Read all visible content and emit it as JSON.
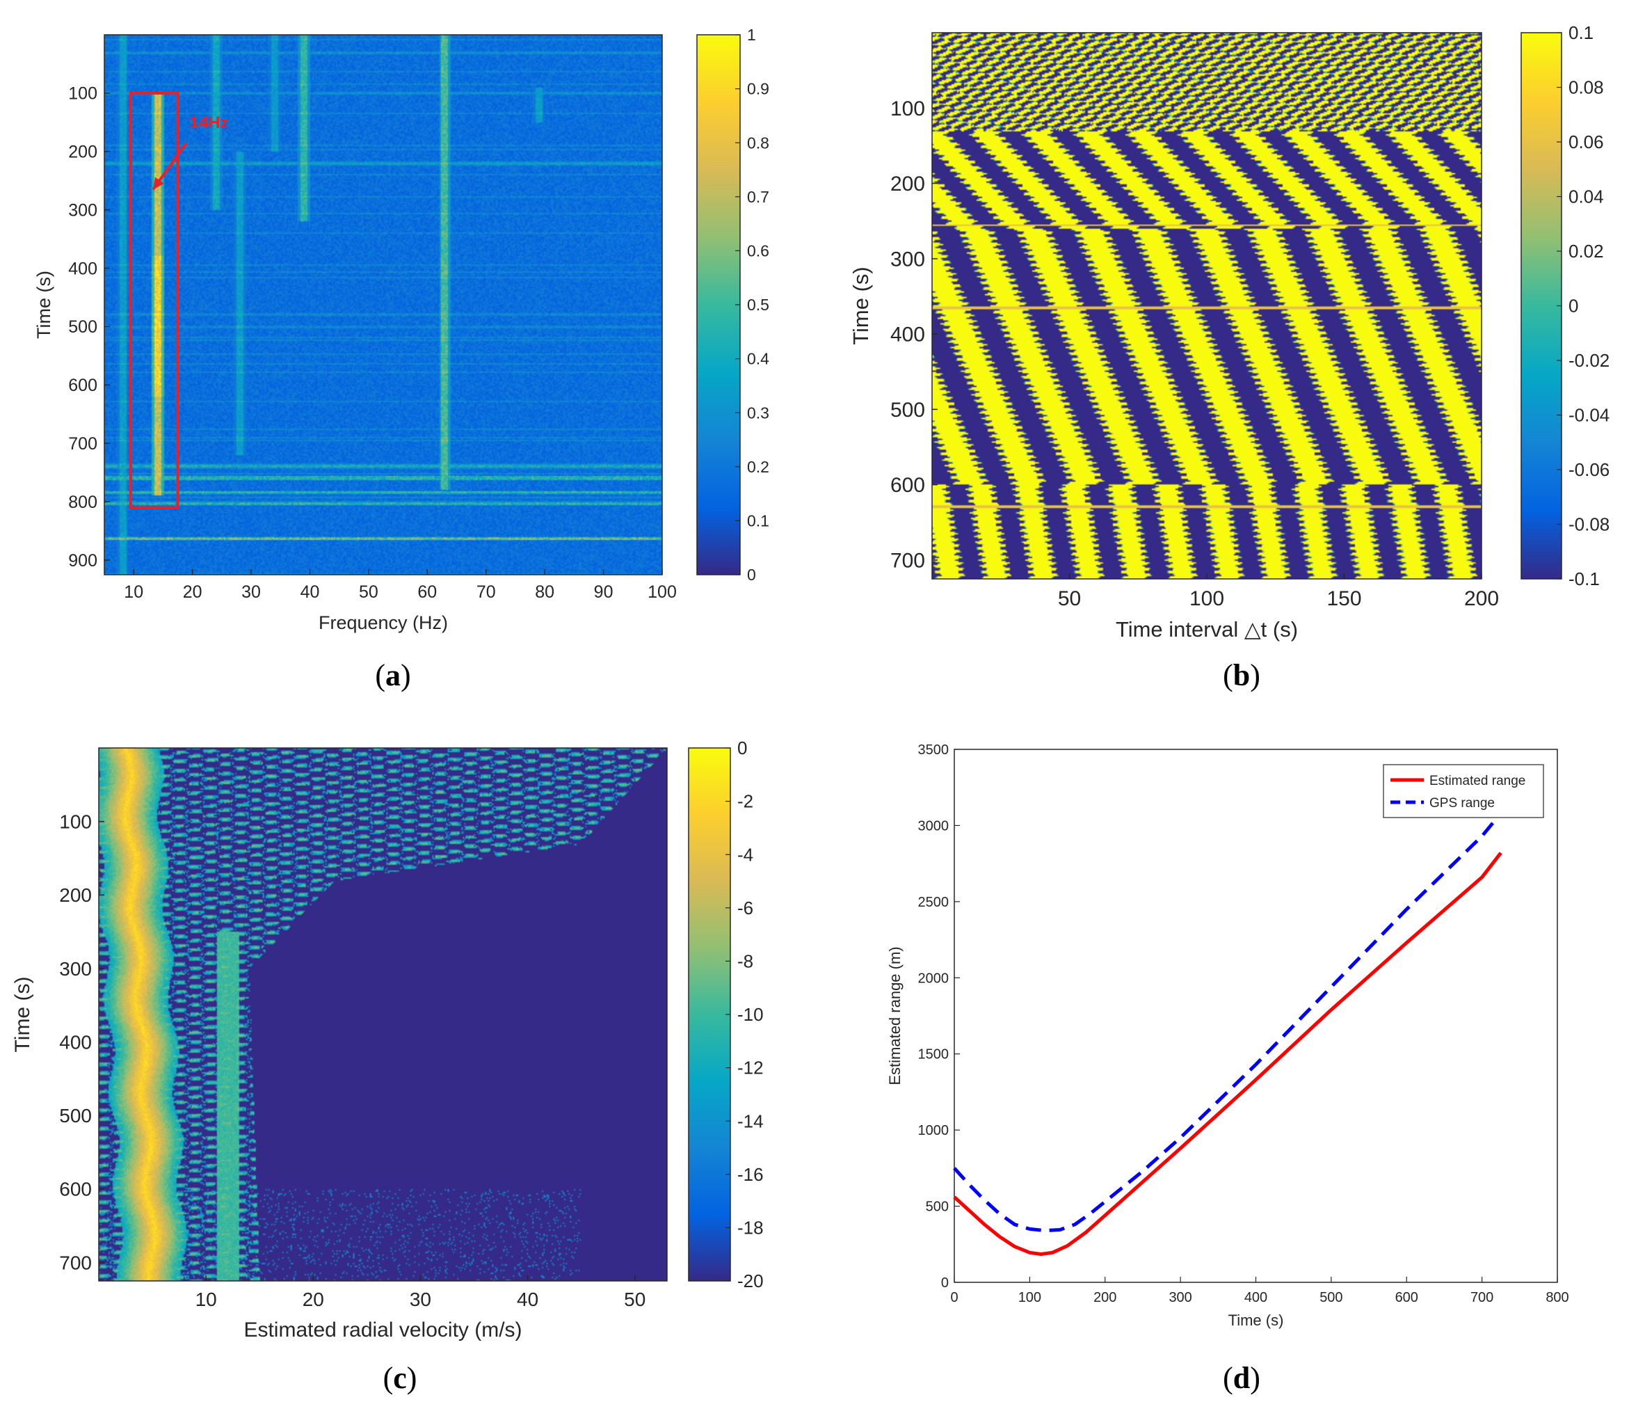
{
  "colors": {
    "parula": [
      "#352a87",
      "#0363e1",
      "#1485d4",
      "#06a7c6",
      "#38b99e",
      "#92bf73",
      "#d9ba56",
      "#fcce2e",
      "#f9fb0e"
    ],
    "range_est": "#ff0000",
    "range_gps": "#0000ff",
    "annotation": "#e8202a"
  },
  "chart_data": [
    {
      "id": "a",
      "type": "heatmap",
      "caption_letter": "a",
      "caption_open": "(",
      "caption_close": ")",
      "xlabel": "Frequency (Hz)",
      "ylabel": "Time (s)",
      "xlim": [
        5,
        100
      ],
      "ylim": [
        925,
        0
      ],
      "xticks": [
        10,
        20,
        30,
        40,
        50,
        60,
        70,
        80,
        90,
        100
      ],
      "yticks": [
        100,
        200,
        300,
        400,
        500,
        600,
        700,
        800,
        900
      ],
      "colorbar": {
        "range": [
          0,
          1
        ],
        "ticks": [
          0,
          0.1,
          0.2,
          0.3,
          0.4,
          0.5,
          0.6,
          0.7,
          0.8,
          0.9,
          1
        ],
        "labels": [
          "0",
          "0.1",
          "0.2",
          "0.3",
          "0.4",
          "0.5",
          "0.6",
          "0.7",
          "0.8",
          "0.9",
          "1"
        ]
      },
      "background_level": 0.17,
      "vertical_lines": [
        {
          "x": 8,
          "t": [
            0,
            925
          ],
          "level": 0.4
        },
        {
          "x": 14,
          "t": [
            100,
            790
          ],
          "level": 0.85
        },
        {
          "x": 14,
          "t": [
            380,
            620
          ],
          "level": 1.0
        },
        {
          "x": 24,
          "t": [
            0,
            300
          ],
          "level": 0.45
        },
        {
          "x": 28,
          "t": [
            200,
            720
          ],
          "level": 0.4
        },
        {
          "x": 34,
          "t": [
            0,
            200
          ],
          "level": 0.38
        },
        {
          "x": 39,
          "t": [
            0,
            320
          ],
          "level": 0.55
        },
        {
          "x": 63,
          "t": [
            0,
            780
          ],
          "level": 0.6
        },
        {
          "x": 79,
          "t": [
            90,
            150
          ],
          "level": 0.4
        }
      ],
      "horizontal_lines": [
        {
          "t": 30,
          "level": 0.35
        },
        {
          "t": 100,
          "level": 0.35
        },
        {
          "t": 220,
          "level": 0.35
        },
        {
          "t": 740,
          "level": 0.5
        },
        {
          "t": 760,
          "level": 0.55
        },
        {
          "t": 785,
          "level": 0.5
        },
        {
          "t": 805,
          "level": 0.55
        },
        {
          "t": 865,
          "level": 0.65
        }
      ],
      "annotation": {
        "text": "14Hz",
        "box": {
          "x": [
            9.5,
            17.5
          ],
          "t": [
            100,
            810
          ]
        },
        "text_at": {
          "x": 19.5,
          "t": 160
        },
        "arrow_from": {
          "x": 19,
          "t": 185
        },
        "arrow_to": {
          "x": 13.3,
          "t": 265
        }
      }
    },
    {
      "id": "b",
      "type": "heatmap",
      "caption_letter": "b",
      "caption_open": "(",
      "caption_close": ")",
      "xlabel": "Time interval △t (s)",
      "ylabel": "Time (s)",
      "xlim": [
        0,
        200
      ],
      "ylim": [
        725,
        0
      ],
      "xticks": [
        50,
        100,
        150,
        200
      ],
      "yticks": [
        100,
        200,
        300,
        400,
        500,
        600,
        700
      ],
      "colorbar": {
        "range": [
          -0.1,
          0.1
        ],
        "ticks": [
          -0.1,
          -0.08,
          -0.06,
          -0.04,
          -0.02,
          0,
          0.02,
          0.04,
          0.06,
          0.08,
          0.1
        ],
        "labels": [
          "-0.1",
          "-0.08",
          "-0.06",
          "-0.04",
          "-0.02",
          "0",
          "0.02",
          "0.04",
          "0.06",
          "0.08",
          "0.1"
        ]
      },
      "stripe_period": [
        40,
        26
      ],
      "bright_lines": [
        {
          "t": 255,
          "level": 0.1
        },
        {
          "t": 365,
          "level": 0.1
        },
        {
          "t": 630,
          "level": 0.08
        }
      ]
    },
    {
      "id": "c",
      "type": "heatmap",
      "caption_letter": "c",
      "caption_open": "(",
      "caption_close": ")",
      "xlabel": "Estimated radial velocity (m/s)",
      "ylabel": "Time (s)",
      "xlim": [
        0,
        53
      ],
      "ylim": [
        725,
        0
      ],
      "xticks": [
        10,
        20,
        30,
        40,
        50
      ],
      "yticks": [
        100,
        200,
        300,
        400,
        500,
        600,
        700
      ],
      "colorbar": {
        "range": [
          -20,
          0
        ],
        "ticks": [
          -20,
          -18,
          -16,
          -14,
          -12,
          -10,
          -8,
          -6,
          -4,
          -2,
          0
        ],
        "labels": [
          "-20",
          "-18",
          "-16",
          "-14",
          "-12",
          "-10",
          "-8",
          "-6",
          "-4",
          "-2",
          "0"
        ]
      },
      "ridge_velocity": [
        {
          "t": 0,
          "v": 2.5
        },
        {
          "t": 200,
          "v": 3.2
        },
        {
          "t": 450,
          "v": 4.2
        },
        {
          "t": 725,
          "v": 5.0
        }
      ],
      "ridge_level": -1,
      "secondary_ridge": {
        "v": 12,
        "t": [
          250,
          725
        ],
        "level": -11
      },
      "noise_edge": [
        {
          "t": 0,
          "v": 53
        },
        {
          "t": 130,
          "v": 45
        },
        {
          "t": 180,
          "v": 22
        },
        {
          "t": 300,
          "v": 14
        },
        {
          "t": 725,
          "v": 15
        }
      ]
    },
    {
      "id": "d",
      "type": "line",
      "caption_letter": "d",
      "caption_open": "(",
      "caption_close": ")",
      "xlabel": "Time (s)",
      "ylabel": "Estimated range (m)",
      "xlim": [
        0,
        800
      ],
      "ylim": [
        0,
        3500
      ],
      "xticks": [
        0,
        100,
        200,
        300,
        400,
        500,
        600,
        700,
        800
      ],
      "yticks": [
        0,
        500,
        1000,
        1500,
        2000,
        2500,
        3000,
        3500
      ],
      "legend_position": "top-right",
      "series": [
        {
          "name": "Estimated range",
          "style": "solid",
          "x": [
            0,
            20,
            40,
            60,
            80,
            100,
            115,
            130,
            150,
            175,
            200,
            250,
            300,
            400,
            500,
            600,
            700,
            725
          ],
          "y": [
            560,
            470,
            380,
            300,
            235,
            195,
            185,
            195,
            240,
            330,
            440,
            660,
            880,
            1330,
            1790,
            2230,
            2660,
            2820
          ]
        },
        {
          "name": "GPS range",
          "style": "dashed",
          "x": [
            0,
            20,
            40,
            60,
            80,
            100,
            120,
            140,
            160,
            180,
            200,
            250,
            300,
            400,
            500,
            600,
            700,
            730
          ],
          "y": [
            750,
            640,
            540,
            450,
            380,
            350,
            340,
            345,
            380,
            450,
            530,
            730,
            950,
            1430,
            1940,
            2450,
            2930,
            3110
          ]
        }
      ]
    }
  ]
}
